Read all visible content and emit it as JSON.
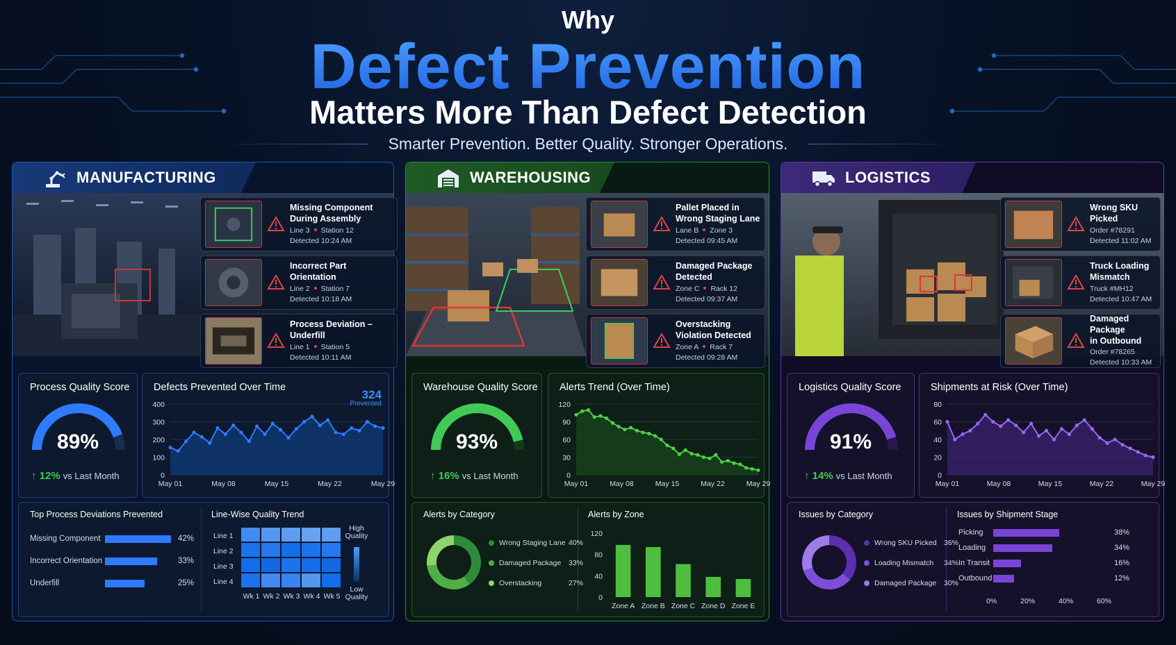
{
  "header": {
    "why": "Why",
    "title": "Defect Prevention",
    "subtitle": "Matters More Than Defect Detection",
    "tagline": "Smarter Prevention. Better Quality. Stronger Operations."
  },
  "colors": {
    "blue_accent": "#2f7bff",
    "green_accent": "#3fcb56",
    "purple_accent": "#7a45d6",
    "alert_red": "#d0343a"
  },
  "manufacturing": {
    "title": "MANUFACTURING",
    "icon": "robot-arm-icon",
    "alerts": [
      {
        "title_1": "Missing Component",
        "title_2": "During Assembly",
        "loc_a": "Line 3",
        "loc_b": "Station 12",
        "time": "Detected 10:24 AM"
      },
      {
        "title_1": "Incorrect Part",
        "title_2": "Orientation",
        "loc_a": "Line 2",
        "loc_b": "Station 7",
        "time": "Detected 10:18 AM"
      },
      {
        "title_1": "Process Deviation –",
        "title_2": "Underfill",
        "loc_a": "Line 1",
        "loc_b": "Station 5",
        "time": "Detected 10:11 AM"
      }
    ],
    "score": {
      "title": "Process Quality Score",
      "value": "89%",
      "fraction": 0.89,
      "delta": "12%",
      "delta_label": "vs Last Month"
    },
    "trend": {
      "title": "Defects Prevented Over Time",
      "highlight_value": "324",
      "highlight_label": "Prevented"
    },
    "deviations": {
      "title": "Top Process Deviations Prevented",
      "rows": [
        {
          "label": "Missing Component",
          "value": "42%",
          "fraction": 0.42
        },
        {
          "label": "Incorrect Orientation",
          "value": "33%",
          "fraction": 0.33
        },
        {
          "label": "Underfill",
          "value": "25%",
          "fraction": 0.25
        }
      ]
    },
    "heatmap": {
      "title": "Line-Wise Quality Trend",
      "rows": [
        "Line 1",
        "Line 2",
        "Line 3",
        "Line 4"
      ],
      "cols": [
        "Wk 1",
        "Wk 2",
        "Wk 3",
        "Wk 4",
        "Wk 5"
      ],
      "legend_high": "High Quality",
      "legend_low": "Low Quality"
    }
  },
  "warehousing": {
    "title": "WAREHOUSING",
    "icon": "warehouse-icon",
    "alerts": [
      {
        "title_1": "Pallet Placed in",
        "title_2": "Wrong Staging Lane",
        "loc_a": "Lane B",
        "loc_b": "Zone 3",
        "time": "Detected 09:45 AM"
      },
      {
        "title_1": "Damaged Package",
        "title_2": "Detected",
        "loc_a": "Zone C",
        "loc_b": "Rack 12",
        "time": "Detected 09:37 AM"
      },
      {
        "title_1": "Overstacking",
        "title_2": "Violation Detected",
        "loc_a": "Zone A",
        "loc_b": "Rack 7",
        "time": "Detected 09:28 AM"
      }
    ],
    "score": {
      "title": "Warehouse Quality Score",
      "value": "93%",
      "fraction": 0.93,
      "delta": "16%",
      "delta_label": "vs Last Month"
    },
    "trend": {
      "title": "Alerts Trend (Over Time)"
    },
    "category": {
      "title": "Alerts by Category",
      "items": [
        {
          "label": "Wrong Staging Lane",
          "value": "40%",
          "fraction": 0.4,
          "color": "#2e8b3a"
        },
        {
          "label": "Damaged Package",
          "value": "33%",
          "fraction": 0.33,
          "color": "#4fae45"
        },
        {
          "label": "Overstacking",
          "value": "27%",
          "fraction": 0.27,
          "color": "#8fd46a"
        }
      ]
    },
    "zone": {
      "title": "Alerts by Zone"
    }
  },
  "logistics": {
    "title": "LOGISTICS",
    "icon": "truck-icon",
    "alerts": [
      {
        "title_1": "Wrong SKU",
        "title_2": "Picked",
        "loc_a": "Order #78291",
        "loc_b": "",
        "time": "Detected 11:02 AM"
      },
      {
        "title_1": "Truck Loading",
        "title_2": "Mismatch",
        "loc_a": "Truck #MH12",
        "loc_b": "",
        "time": "Detected 10:47 AM"
      },
      {
        "title_1": "Damaged Package",
        "title_2": "in Outbound",
        "loc_a": "Order #78265",
        "loc_b": "",
        "time": "Detected 10:33 AM"
      }
    ],
    "score": {
      "title": "Logistics Quality Score",
      "value": "91%",
      "fraction": 0.91,
      "delta": "14%",
      "delta_label": "vs Last Month"
    },
    "trend": {
      "title": "Shipments at Risk (Over Time)"
    },
    "category": {
      "title": "Issues by Category",
      "items": [
        {
          "label": "Wrong SKU Picked",
          "value": "36%",
          "fraction": 0.36,
          "color": "#5a2fb0"
        },
        {
          "label": "Loading Mismatch",
          "value": "34%",
          "fraction": 0.34,
          "color": "#7c4fd6"
        },
        {
          "label": "Damaged Package",
          "value": "30%",
          "fraction": 0.3,
          "color": "#a07ce8"
        }
      ]
    },
    "stage": {
      "title": "Issues by Shipment Stage",
      "rows": [
        {
          "label": "Picking",
          "value": "38%",
          "fraction": 0.38
        },
        {
          "label": "Loading",
          "value": "34%",
          "fraction": 0.34
        },
        {
          "label": "In Transit",
          "value": "16%",
          "fraction": 0.16
        },
        {
          "label": "Outbound",
          "value": "12%",
          "fraction": 0.12
        }
      ],
      "ticks": [
        "0%",
        "20%",
        "40%",
        "60%"
      ]
    }
  },
  "chart_data": [
    {
      "type": "line",
      "title": "Defects Prevented Over Time",
      "xticks": [
        "May 01",
        "May 08",
        "May 15",
        "May 22",
        "May 29"
      ],
      "yticks": [
        0,
        100,
        200,
        300,
        400
      ],
      "ylim": [
        0,
        400
      ],
      "values": [
        155,
        135,
        190,
        240,
        215,
        180,
        265,
        230,
        280,
        240,
        190,
        275,
        230,
        290,
        255,
        210,
        260,
        300,
        330,
        280,
        310,
        240,
        230,
        265,
        250,
        300,
        275,
        265
      ],
      "fill": true,
      "grid": true
    },
    {
      "type": "line",
      "title": "Alerts Trend (Over Time)",
      "xticks": [
        "May 01",
        "May 08",
        "May 15",
        "May 22",
        "May 29"
      ],
      "yticks": [
        0,
        30,
        60,
        90,
        120
      ],
      "ylim": [
        0,
        120
      ],
      "values": [
        102,
        108,
        110,
        98,
        100,
        96,
        88,
        82,
        77,
        80,
        75,
        72,
        70,
        66,
        60,
        50,
        45,
        35,
        42,
        36,
        34,
        30,
        28,
        34,
        22,
        24,
        20,
        18,
        12,
        10,
        8
      ],
      "fill": true,
      "grid": true
    },
    {
      "type": "line",
      "title": "Shipments at Risk (Over Time)",
      "xticks": [
        "May 01",
        "May 08",
        "May 15",
        "May 22",
        "May 29"
      ],
      "yticks": [
        0,
        20,
        40,
        60,
        80
      ],
      "ylim": [
        0,
        80
      ],
      "values": [
        60,
        40,
        46,
        50,
        58,
        68,
        60,
        55,
        62,
        56,
        48,
        58,
        44,
        50,
        40,
        52,
        46,
        56,
        62,
        52,
        42,
        36,
        40,
        34,
        30,
        26,
        22,
        20
      ],
      "fill": true,
      "grid": true
    },
    {
      "type": "bar",
      "title": "Alerts by Zone",
      "categories": [
        "Zone A",
        "Zone B",
        "Zone C",
        "Zone D",
        "Zone E"
      ],
      "values": [
        98,
        94,
        62,
        38,
        34
      ],
      "yticks": [
        0,
        40,
        80,
        120
      ],
      "ylim": [
        0,
        120
      ]
    },
    {
      "type": "heatmap",
      "title": "Line-Wise Quality Trend",
      "rows": [
        "Line 1",
        "Line 2",
        "Line 3",
        "Line 4"
      ],
      "cols": [
        "Wk 1",
        "Wk 2",
        "Wk 3",
        "Wk 4",
        "Wk 5"
      ],
      "values": [
        [
          0.75,
          0.85,
          0.9,
          0.95,
          0.9
        ],
        [
          0.55,
          0.6,
          0.5,
          0.55,
          0.6
        ],
        [
          0.5,
          0.45,
          0.55,
          0.5,
          0.45
        ],
        [
          0.55,
          0.75,
          0.7,
          0.85,
          0.5
        ]
      ]
    }
  ]
}
